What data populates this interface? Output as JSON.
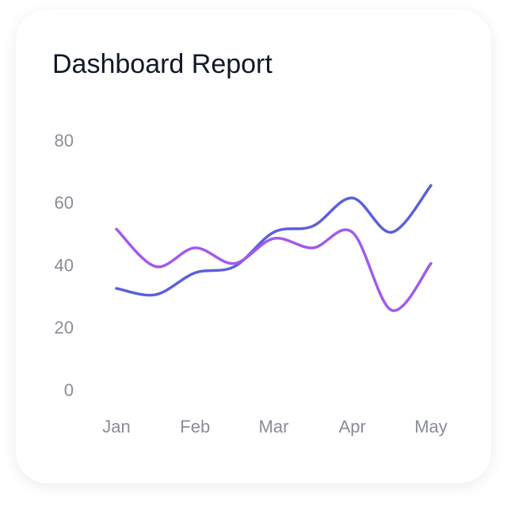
{
  "chart_data": {
    "type": "line",
    "title": "Dashboard Report",
    "categories": [
      "Jan",
      null,
      "Feb",
      null,
      "Mar",
      null,
      "Apr",
      null,
      "May"
    ],
    "series": [
      {
        "color": "#5b5fdc",
        "values": [
          33,
          31,
          38,
          40,
          51,
          53,
          62,
          51,
          66
        ]
      },
      {
        "color": "#a259ec",
        "values": [
          52,
          40,
          46,
          41,
          49,
          46,
          51,
          26,
          41
        ]
      }
    ],
    "ylim": [
      0,
      80
    ],
    "yticks": [
      0,
      20,
      40,
      60,
      80
    ],
    "grid": false
  }
}
